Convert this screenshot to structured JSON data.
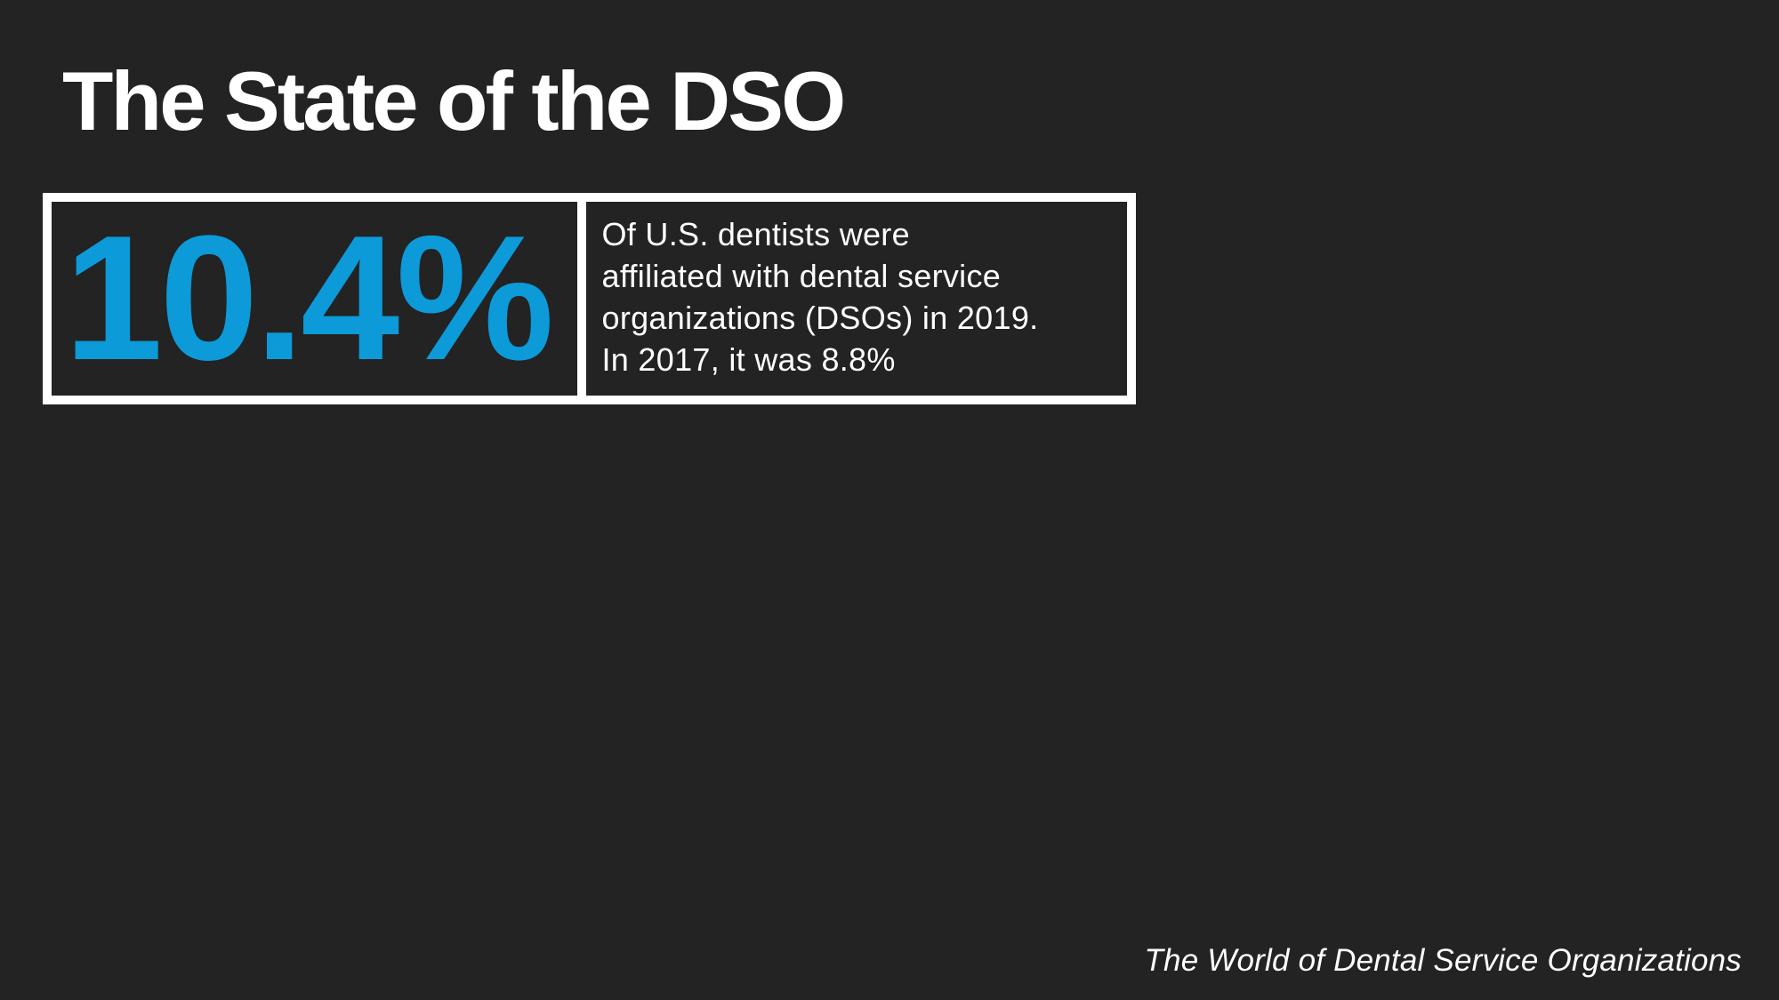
{
  "slide": {
    "title": "The State of the DSO",
    "stat": {
      "value": "10.4%",
      "description_lines": [
        "Of U.S. dentists were",
        "affiliated with dental service",
        "organizations (DSOs) in 2019.",
        "In 2017, it was 8.8%"
      ]
    },
    "footer": "The World of Dental Service Organizations",
    "colors": {
      "background": "#232323",
      "accent": "#0C9AD8",
      "text": "#FFFFFF",
      "border": "#FFFFFF"
    }
  }
}
